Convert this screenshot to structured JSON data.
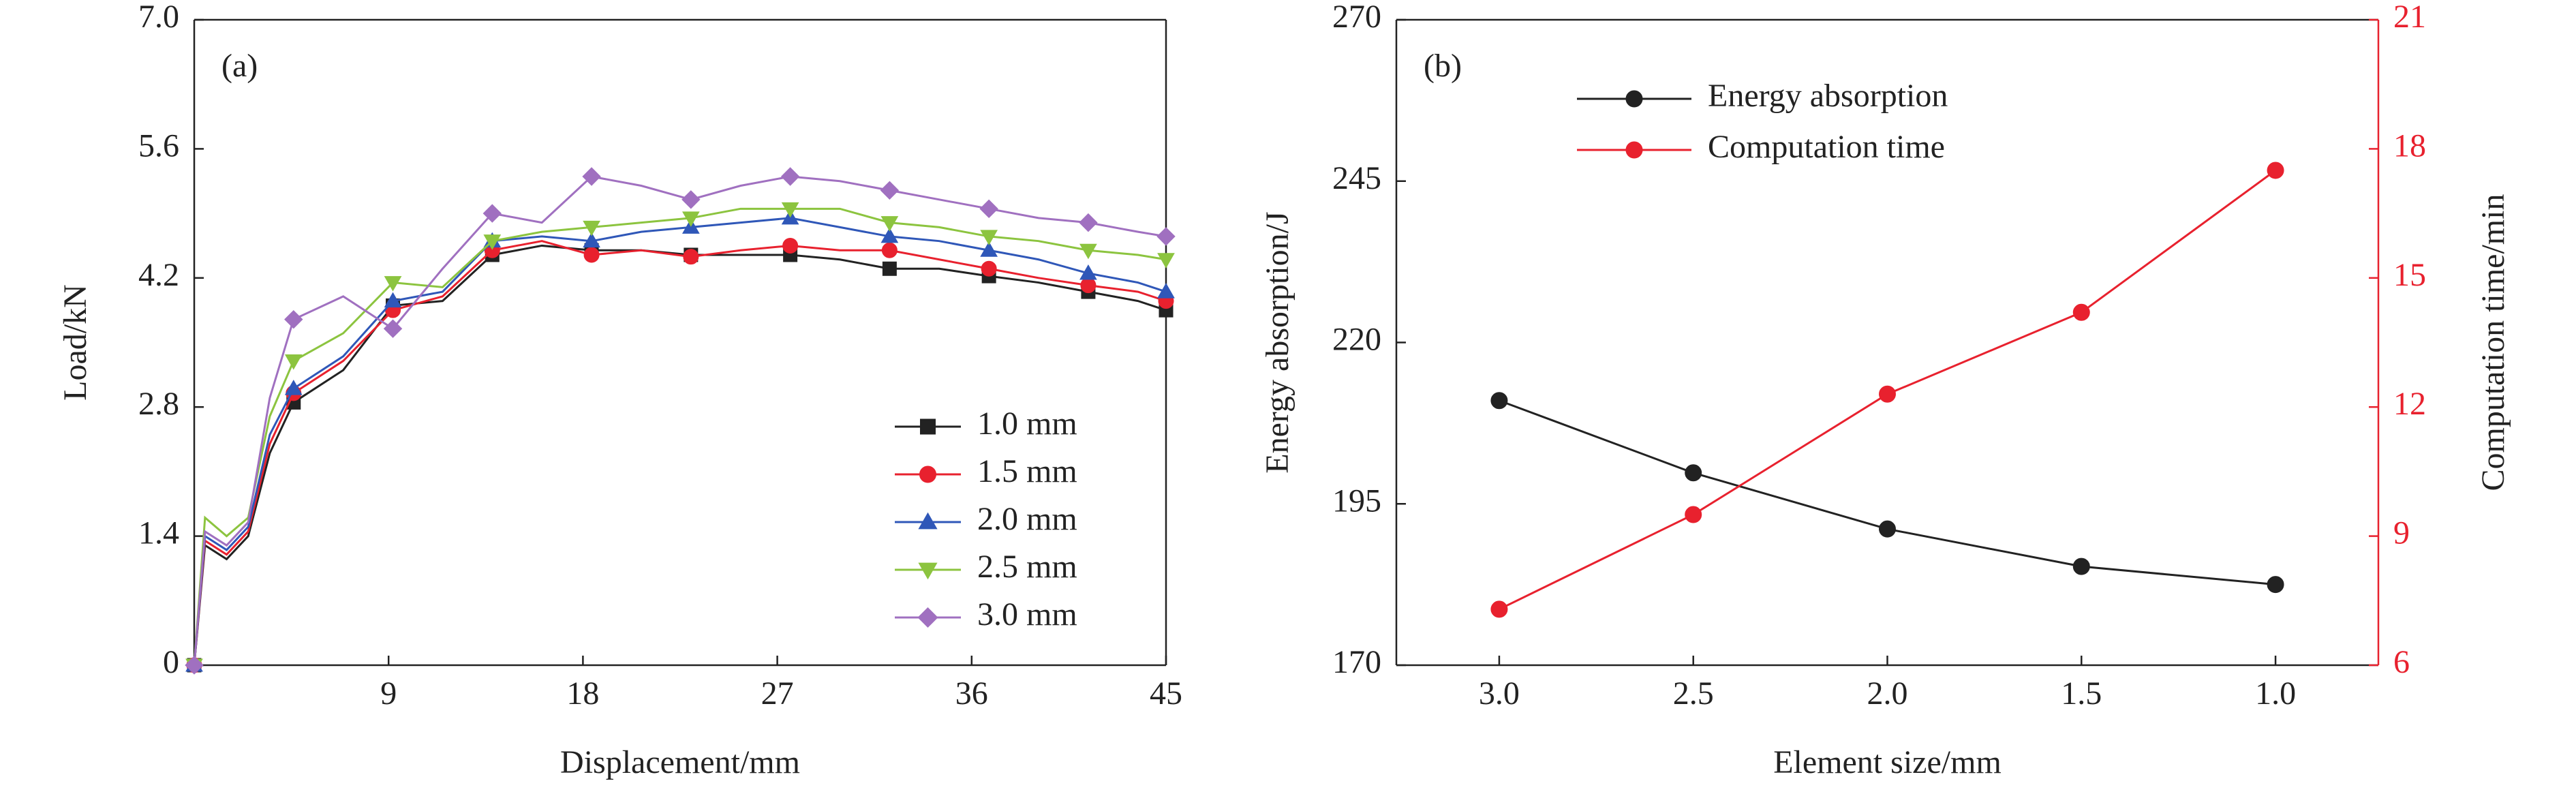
{
  "chart_data": [
    {
      "type": "line",
      "annotation": "(a)",
      "x_label": "Displacement/mm",
      "y_label": "Load/kN",
      "x": [
        0,
        0.5,
        1.5,
        2.5,
        3.5,
        4.6,
        6.9,
        9.2,
        11.5,
        13.8,
        16.1,
        18.4,
        20.7,
        23,
        25.3,
        27.6,
        29.9,
        32.2,
        34.5,
        36.8,
        39.1,
        41.4,
        43.7,
        45
      ],
      "xlim": [
        0,
        45
      ],
      "xticks": [
        9,
        18,
        27,
        36,
        45
      ],
      "ylim": [
        0,
        7
      ],
      "yticks": [
        0,
        1.4,
        2.8,
        4.2,
        5.6,
        {
          "value": 7,
          "label": "7.0"
        }
      ],
      "legend": "lower right",
      "series": [
        {
          "name": "1.0 mm",
          "color": "#222222",
          "marker": "square",
          "values": [
            0,
            1.3,
            1.15,
            1.4,
            2.3,
            2.85,
            3.2,
            3.9,
            3.95,
            4.45,
            4.55,
            4.5,
            4.5,
            4.45,
            4.45,
            4.45,
            4.4,
            4.3,
            4.3,
            4.22,
            4.15,
            4.05,
            3.95,
            3.85
          ]
        },
        {
          "name": "1.5 mm",
          "color": "#e8212e",
          "marker": "circle",
          "values": [
            0,
            1.35,
            1.2,
            1.45,
            2.4,
            2.95,
            3.3,
            3.85,
            4.0,
            4.5,
            4.6,
            4.45,
            4.5,
            4.43,
            4.5,
            4.55,
            4.5,
            4.5,
            4.4,
            4.3,
            4.2,
            4.12,
            4.05,
            3.95
          ]
        },
        {
          "name": "2.0 mm",
          "color": "#2f57b8",
          "marker": "triangle-up",
          "values": [
            0,
            1.4,
            1.25,
            1.5,
            2.5,
            3.0,
            3.35,
            3.95,
            4.05,
            4.6,
            4.65,
            4.6,
            4.7,
            4.75,
            4.8,
            4.85,
            4.75,
            4.65,
            4.6,
            4.5,
            4.4,
            4.25,
            4.15,
            4.05
          ]
        },
        {
          "name": "2.5 mm",
          "color": "#8cc43f",
          "marker": "triangle-down",
          "values": [
            0,
            1.6,
            1.4,
            1.6,
            2.7,
            3.3,
            3.6,
            4.15,
            4.1,
            4.6,
            4.7,
            4.75,
            4.8,
            4.85,
            4.95,
            4.95,
            4.95,
            4.8,
            4.75,
            4.65,
            4.6,
            4.5,
            4.45,
            4.4
          ]
        },
        {
          "name": "3.0 mm",
          "color": "#a070c0",
          "marker": "diamond",
          "values": [
            0,
            1.45,
            1.3,
            1.55,
            2.9,
            3.75,
            4.0,
            3.65,
            4.3,
            4.9,
            4.8,
            5.3,
            5.2,
            5.05,
            5.2,
            5.3,
            5.25,
            5.15,
            5.05,
            4.95,
            4.85,
            4.8,
            4.7,
            4.65
          ]
        }
      ]
    },
    {
      "type": "line",
      "annotation": "(b)",
      "x_label": "Element size/mm",
      "y_label": "Energy absorption/J",
      "y2_label": "Computation time/min",
      "categories": [
        "3.0",
        "2.5",
        "2.0",
        "1.5",
        "1.0"
      ],
      "ylim": [
        170,
        270
      ],
      "yticks": [
        170,
        195,
        220,
        245,
        270
      ],
      "y2lim": [
        6,
        21
      ],
      "y2ticks": [
        6,
        9,
        12,
        15,
        18,
        21
      ],
      "y2_color": "#e8212e",
      "legend": "upper left",
      "series": [
        {
          "name": "Energy absorption",
          "color": "#222222",
          "marker": "circle",
          "values": [
            211,
            199.8,
            191.1,
            185.3,
            182.5
          ]
        },
        {
          "name": "Computation time",
          "color": "#e8212e",
          "marker": "circle",
          "axis": "y2",
          "values": [
            7.3,
            9.5,
            12.3,
            14.2,
            17.5
          ]
        }
      ]
    }
  ]
}
